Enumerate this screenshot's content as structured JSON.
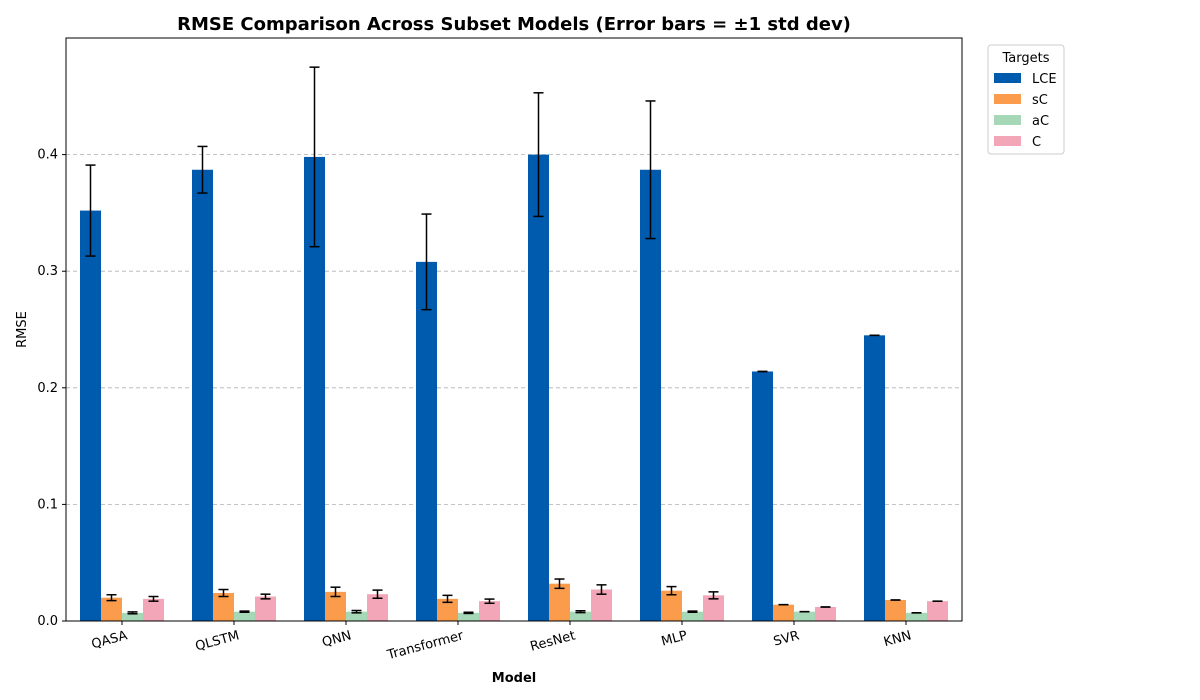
{
  "chart_data": {
    "type": "bar",
    "title": "RMSE Comparison Across Subset Models (Error bars = ±1 std dev)",
    "xlabel": "Model",
    "ylabel": "RMSE",
    "ylim": [
      0,
      0.5
    ],
    "yticks": [
      0.0,
      0.1,
      0.2,
      0.3,
      0.4
    ],
    "ytick_labels": [
      "0.0",
      "0.1",
      "0.2",
      "0.3",
      "0.4"
    ],
    "grid": "y dashed",
    "legend_title": "Targets",
    "legend_position": "outside top-right",
    "categories": [
      "QASA",
      "QLSTM",
      "QNN",
      "Transformer",
      "ResNet",
      "MLP",
      "SVR",
      "KNN"
    ],
    "series": [
      {
        "name": "LCE",
        "color": "#005aae",
        "values": [
          0.352,
          0.387,
          0.398,
          0.308,
          0.4,
          0.387,
          0.214,
          0.245
        ],
        "std": [
          0.039,
          0.02,
          0.077,
          0.041,
          0.053,
          0.059,
          0.0,
          0.0
        ]
      },
      {
        "name": "sC",
        "color": "#fa9c4c",
        "values": [
          0.02,
          0.024,
          0.025,
          0.019,
          0.032,
          0.026,
          0.014,
          0.018
        ],
        "std": [
          0.0025,
          0.003,
          0.004,
          0.003,
          0.004,
          0.0035,
          0.0,
          0.0
        ]
      },
      {
        "name": "aC",
        "color": "#a6d8b7",
        "values": [
          0.007,
          0.008,
          0.008,
          0.007,
          0.008,
          0.008,
          0.008,
          0.007
        ],
        "std": [
          0.0008,
          0.0005,
          0.001,
          0.0005,
          0.0008,
          0.0005,
          0.0,
          0.0
        ]
      },
      {
        "name": "C",
        "color": "#f2a6b8",
        "values": [
          0.019,
          0.021,
          0.023,
          0.017,
          0.027,
          0.022,
          0.012,
          0.017
        ],
        "std": [
          0.002,
          0.002,
          0.0035,
          0.0018,
          0.004,
          0.003,
          0.0,
          0.0
        ]
      }
    ]
  }
}
